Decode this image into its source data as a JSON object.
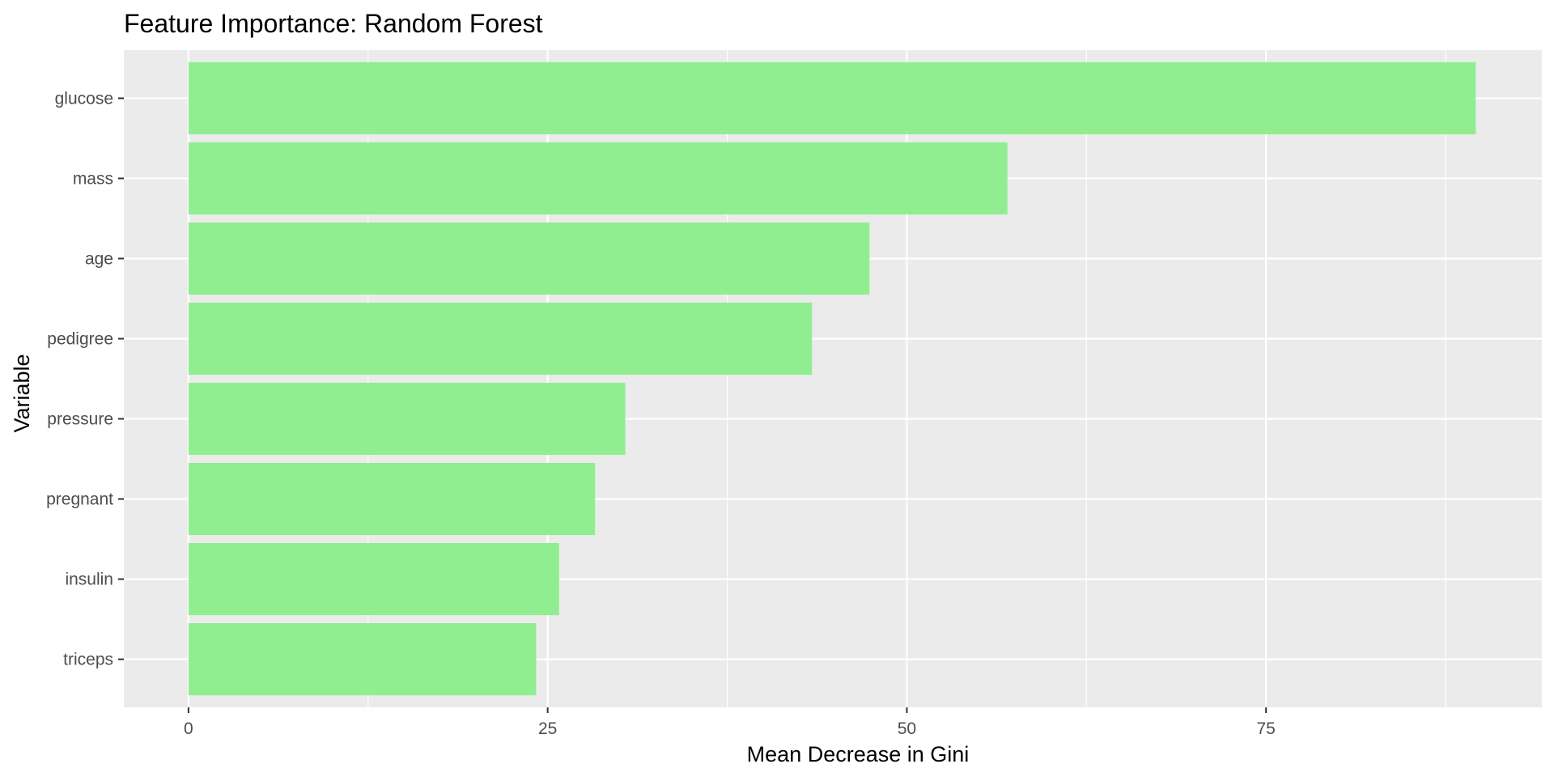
{
  "chart_data": {
    "type": "bar",
    "orientation": "horizontal",
    "title": "Feature Importance: Random Forest",
    "xlabel": "Mean Decrease in Gini",
    "ylabel": "Variable",
    "categories": [
      "glucose",
      "mass",
      "age",
      "pedigree",
      "pressure",
      "pregnant",
      "insulin",
      "triceps"
    ],
    "values": [
      89.6,
      57.0,
      47.4,
      43.4,
      30.4,
      28.3,
      25.8,
      24.2
    ],
    "xlim": [
      -4.5,
      94.2
    ],
    "xticks": [
      0,
      25,
      50,
      75
    ],
    "xtick_labels": [
      "0",
      "25",
      "50",
      "75"
    ],
    "grid": true,
    "legend": "none",
    "colors": {
      "bar": "#90ee90",
      "panel": "#ebebeb",
      "grid": "#ffffff",
      "axis_text": "#4d4d4d",
      "title": "#000000"
    }
  }
}
